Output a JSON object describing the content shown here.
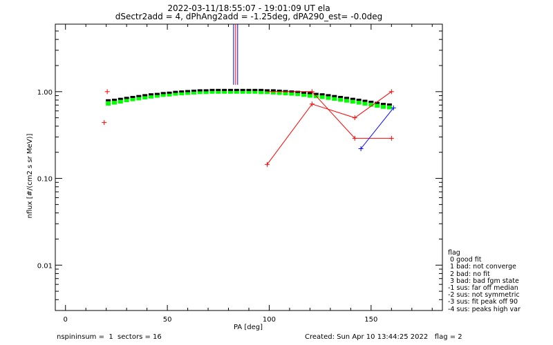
{
  "header": {
    "title_line1": "2022-03-11/18:55:07 - 19:01:09 UT ela",
    "title_line2": "dSectr2add = 4, dPhAng2add = -1.25deg, dPA290_est=  -0.0deg"
  },
  "footer": {
    "left": "nspininsum =  1  sectors = 16",
    "right": "Created: Sun Apr 10 13:44:25 2022   flag = 2"
  },
  "legend": {
    "title": "flag",
    "items": [
      " 0 good fit",
      " 1 bad: not converge",
      " 2 bad: no fit",
      " 3 bad: bad fgm state",
      "-1 sus: far off median",
      "-2 sus: not symmetric",
      "-3 sus: fit peak off 90",
      "-4 sus: peaks high var"
    ]
  },
  "colors": {
    "red": "#ff0000",
    "blue": "#0000ff",
    "green": "#00ff00",
    "black": "#000000"
  },
  "chart_data": {
    "type": "scatter",
    "xlabel": "PA [deg]",
    "ylabel": "nflux [#/(cm2 s sr MeV)]",
    "xlim": [
      -5,
      185
    ],
    "ylim": [
      0.003,
      6
    ],
    "yscale": "log",
    "xticks": [
      0,
      50,
      100,
      150
    ],
    "yticks": [
      0.01,
      0.1,
      1.0
    ],
    "ytick_labels": [
      "0.01",
      "0.10",
      "1.00"
    ],
    "series": [
      {
        "color": "red",
        "marker": "+",
        "connected": false,
        "points": [
          [
            19,
            0.44
          ],
          [
            20.5,
            1.0
          ]
        ]
      },
      {
        "color": "red",
        "marker": "+",
        "connected": true,
        "points": [
          [
            99,
            0.145
          ],
          [
            121,
            0.72
          ],
          [
            142,
            0.5
          ],
          [
            160,
            1.0
          ]
        ]
      },
      {
        "color": "red",
        "marker": "+",
        "connected": true,
        "points": [
          [
            121,
            1.0
          ],
          [
            142,
            0.29
          ],
          [
            160,
            0.29
          ]
        ]
      },
      {
        "color": "red",
        "marker": "none",
        "connected": true,
        "points": [
          [
            99,
            1.0
          ],
          [
            121,
            1.0
          ]
        ]
      },
      {
        "color": "blue",
        "marker": "+",
        "connected": true,
        "points": [
          [
            145,
            0.22
          ],
          [
            161,
            0.65
          ]
        ]
      },
      {
        "color": "black",
        "marker": "dash",
        "connected": false,
        "points": [
          [
            21,
            0.76
          ],
          [
            24,
            0.77
          ],
          [
            27,
            0.79
          ],
          [
            30,
            0.81
          ],
          [
            33,
            0.83
          ],
          [
            36,
            0.85
          ],
          [
            39,
            0.87
          ],
          [
            42,
            0.89
          ],
          [
            45,
            0.9
          ],
          [
            48,
            0.92
          ],
          [
            51,
            0.93
          ],
          [
            54,
            0.95
          ],
          [
            57,
            0.96
          ],
          [
            60,
            0.97
          ],
          [
            63,
            0.98
          ],
          [
            66,
            0.99
          ],
          [
            69,
            0.99
          ],
          [
            72,
            1.0
          ],
          [
            75,
            1.0
          ],
          [
            78,
            1.0
          ],
          [
            81,
            1.0
          ],
          [
            84,
            1.0
          ],
          [
            87,
            1.0
          ],
          [
            90,
            1.0
          ],
          [
            93,
            1.0
          ],
          [
            96,
            1.0
          ],
          [
            99,
            0.99
          ],
          [
            102,
            0.99
          ],
          [
            105,
            0.98
          ],
          [
            108,
            0.97
          ],
          [
            111,
            0.96
          ],
          [
            114,
            0.95
          ],
          [
            117,
            0.93
          ],
          [
            120,
            0.92
          ],
          [
            123,
            0.9
          ],
          [
            126,
            0.89
          ],
          [
            129,
            0.87
          ],
          [
            132,
            0.85
          ],
          [
            135,
            0.83
          ],
          [
            138,
            0.81
          ],
          [
            141,
            0.79
          ],
          [
            144,
            0.77
          ],
          [
            147,
            0.75
          ],
          [
            150,
            0.73
          ],
          [
            153,
            0.71
          ],
          [
            156,
            0.69
          ],
          [
            159,
            0.68
          ]
        ]
      },
      {
        "color": "green",
        "marker": "square",
        "connected": false,
        "points": [
          [
            21,
            0.73
          ],
          [
            24,
            0.75
          ],
          [
            27,
            0.77
          ],
          [
            30,
            0.8
          ],
          [
            33,
            0.82
          ],
          [
            36,
            0.84
          ],
          [
            39,
            0.86
          ],
          [
            42,
            0.88
          ],
          [
            45,
            0.9
          ],
          [
            48,
            0.92
          ],
          [
            51,
            0.93
          ],
          [
            54,
            0.95
          ],
          [
            57,
            0.96
          ],
          [
            60,
            0.97
          ],
          [
            63,
            0.98
          ],
          [
            66,
            0.99
          ],
          [
            69,
            0.99
          ],
          [
            72,
            1.0
          ],
          [
            75,
            1.0
          ],
          [
            78,
            1.0
          ],
          [
            81,
            1.0
          ],
          [
            84,
            1.0
          ],
          [
            87,
            1.0
          ],
          [
            90,
            1.0
          ],
          [
            93,
            1.0
          ],
          [
            96,
            0.99
          ],
          [
            99,
            0.99
          ],
          [
            102,
            0.98
          ],
          [
            105,
            0.97
          ],
          [
            108,
            0.96
          ],
          [
            111,
            0.95
          ],
          [
            114,
            0.94
          ],
          [
            117,
            0.92
          ],
          [
            120,
            0.9
          ],
          [
            123,
            0.89
          ],
          [
            126,
            0.87
          ],
          [
            129,
            0.85
          ],
          [
            132,
            0.83
          ],
          [
            135,
            0.81
          ],
          [
            138,
            0.79
          ],
          [
            141,
            0.77
          ],
          [
            144,
            0.75
          ],
          [
            147,
            0.73
          ],
          [
            150,
            0.71
          ],
          [
            153,
            0.69
          ],
          [
            156,
            0.67
          ],
          [
            159,
            0.66
          ]
        ]
      }
    ],
    "vlines": [
      {
        "x": 82.5,
        "y_from": 1.2,
        "color": "blue"
      },
      {
        "x": 83.5,
        "y_from": 1.2,
        "color": "red"
      },
      {
        "x": 84.5,
        "y_from": 1.2,
        "color": "blue"
      }
    ]
  }
}
